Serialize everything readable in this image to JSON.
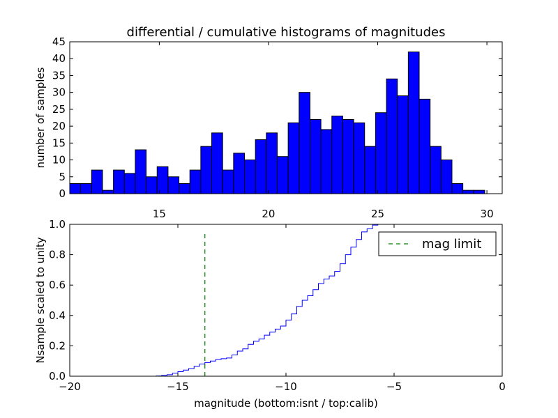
{
  "chart_data": [
    {
      "type": "bar",
      "title": "differential / cumulative histograms of magnitudes",
      "xlabel": "",
      "ylabel": "number of samples",
      "xlim": [
        10.9,
        30.7
      ],
      "ylim": [
        0,
        45
      ],
      "bin_start": 10.9,
      "bin_width": 0.5,
      "values": [
        3,
        3,
        7,
        1,
        7,
        6,
        13,
        5,
        8,
        5,
        3,
        7,
        14,
        18,
        7,
        12,
        10,
        16,
        18,
        11,
        21,
        30,
        22,
        19,
        23,
        22,
        21,
        14,
        24,
        34,
        29,
        42,
        28,
        14,
        10,
        3,
        1,
        1,
        0
      ],
      "xticks": [
        15,
        20,
        25,
        30
      ],
      "yticks": [
        0,
        5,
        10,
        15,
        20,
        25,
        30,
        35,
        40,
        45
      ],
      "bar_color": "#0000ff"
    },
    {
      "type": "line",
      "title": "",
      "xlabel": "magnitude (bottom:isnt / top:calib)",
      "ylabel": "Nsample scaled to unity",
      "xlim": [
        -20,
        0
      ],
      "ylim": [
        0,
        1.0
      ],
      "xticks": [
        -20,
        -15,
        -10,
        -5,
        0
      ],
      "yticks": [
        0.0,
        0.2,
        0.4,
        0.6,
        0.8,
        1.0
      ],
      "step_start": -16.0,
      "step_width": 0.25,
      "cumulative_values": [
        0.002,
        0.005,
        0.01,
        0.02,
        0.03,
        0.04,
        0.05,
        0.065,
        0.08,
        0.09,
        0.1,
        0.11,
        0.115,
        0.12,
        0.14,
        0.165,
        0.18,
        0.21,
        0.23,
        0.245,
        0.27,
        0.29,
        0.31,
        0.33,
        0.37,
        0.41,
        0.46,
        0.5,
        0.53,
        0.57,
        0.61,
        0.64,
        0.66,
        0.69,
        0.74,
        0.8,
        0.85,
        0.9,
        0.95,
        0.97,
        0.995,
        1.0
      ],
      "line_color": "#0000ff",
      "mag_limit": -13.75,
      "limit_color": "#008000",
      "legend": "mag limit"
    }
  ]
}
